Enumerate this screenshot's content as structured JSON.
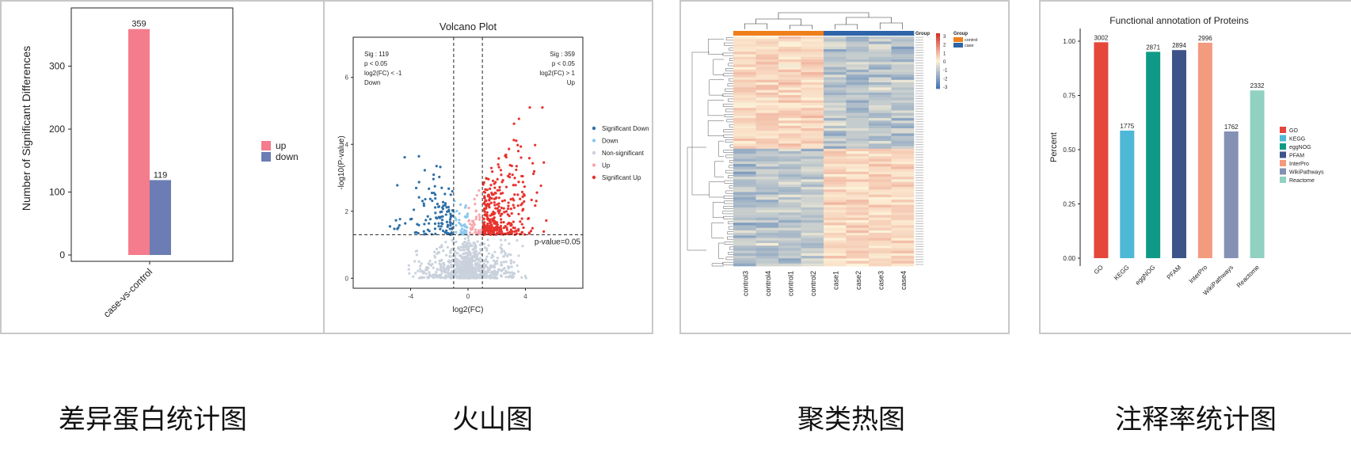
{
  "captions": [
    "差异蛋白统计图",
    "火山图",
    "聚类热图",
    "注释率统计图"
  ],
  "chart_data": [
    {
      "type": "bar",
      "categories": [
        "case-vs-control"
      ],
      "series": [
        {
          "name": "up",
          "values": [
            359
          ],
          "color": "#f47c8c"
        },
        {
          "name": "down",
          "values": [
            119
          ],
          "color": "#6b7db4"
        }
      ],
      "ylabel": "Number of Significant Differences",
      "ylim": [
        0,
        380
      ],
      "yticks": [
        0,
        100,
        200,
        300
      ],
      "legend": "right"
    },
    {
      "type": "scatter",
      "title": "Volcano Plot",
      "xlabel": "log2(FC)",
      "ylabel": "-log10(P-value)",
      "xlim": [
        -8,
        8
      ],
      "ylim": [
        -0.3,
        7.2
      ],
      "xticks": [
        -4,
        0,
        4
      ],
      "yticks": [
        0,
        2,
        4,
        6
      ],
      "thresholds": {
        "x": [
          -1,
          1
        ],
        "y": 1.3,
        "label": "p-value=0.05"
      },
      "annotations": {
        "left": [
          "Sig : 119",
          "p < 0.05",
          "log2(FC) < -1",
          "Down"
        ],
        "right": [
          "Sig : 359",
          "p < 0.05",
          "log2(FC) > 1",
          "Up"
        ]
      },
      "legend_position": "right",
      "series": [
        {
          "name": "Significant Down",
          "color": "#2f6fa6",
          "count": 119
        },
        {
          "name": "Down",
          "color": "#8ec8ec"
        },
        {
          "name": "Non-significant",
          "color": "#c9d1dc"
        },
        {
          "name": "Up",
          "color": "#f6a6ae"
        },
        {
          "name": "Significant Up",
          "color": "#e8322d",
          "count": 359
        }
      ]
    },
    {
      "type": "heatmap",
      "columns": [
        "control3",
        "control4",
        "control1",
        "control2",
        "case1",
        "case2",
        "case3",
        "case4"
      ],
      "groups": [
        "control",
        "control",
        "control",
        "control",
        "case",
        "case",
        "case",
        "case"
      ],
      "legend_title": "Group",
      "group_legend": [
        {
          "name": "control",
          "color": "#f07f1b"
        },
        {
          "name": "case",
          "color": "#2f64a8"
        }
      ],
      "color_scale": {
        "ticks": [
          3,
          2,
          1,
          0,
          -1,
          -2,
          -3
        ],
        "high": "#d73027",
        "mid": "#fdf2d8",
        "low": "#4575b4"
      }
    },
    {
      "type": "bar",
      "title": "Functional annotation of Proteins",
      "ylabel": "Percent",
      "ylim": [
        0,
        1.0
      ],
      "yticks": [
        "0.00",
        "0.25",
        "0.50",
        "0.75",
        "1.00"
      ],
      "categories": [
        "GO",
        "KEGG",
        "eggNOG",
        "PFAM",
        "InterPro",
        "WikiPathways",
        "Reactome"
      ],
      "values": [
        0.995,
        0.588,
        0.951,
        0.959,
        0.993,
        0.584,
        0.773
      ],
      "labels": [
        "3002",
        "1775",
        "2871",
        "2894",
        "2996",
        "1762",
        "2332"
      ],
      "colors": [
        "#e5473a",
        "#4fb8d6",
        "#0e9a86",
        "#3c5488",
        "#f39b7f",
        "#8491b4",
        "#91d1c2"
      ],
      "legend": "right"
    }
  ]
}
